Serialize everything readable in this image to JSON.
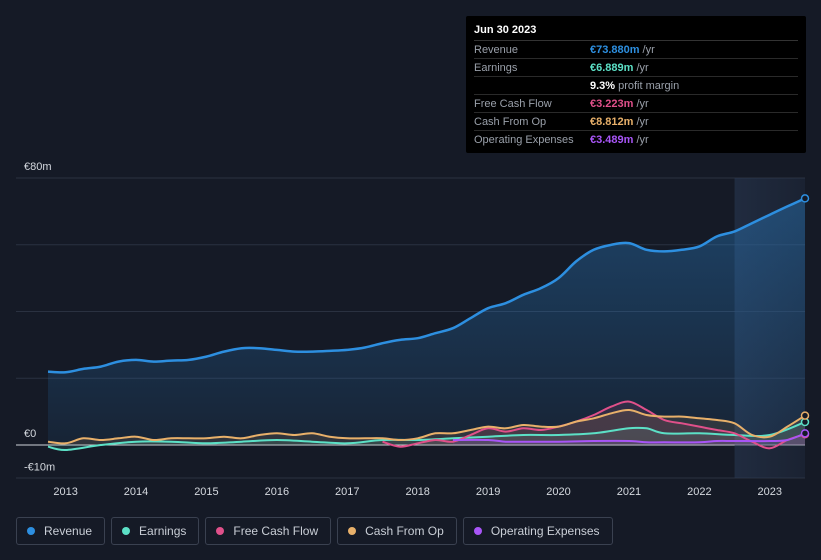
{
  "tooltip": {
    "date": "Jun 30 2023",
    "rows": [
      {
        "label": "Revenue",
        "value": "€73.880m",
        "unit": "/yr",
        "color": "#2d8fe0"
      },
      {
        "label": "Earnings",
        "value": "€6.889m",
        "unit": "/yr",
        "color": "#5ce0c6"
      },
      {
        "label": "",
        "value": "9.3%",
        "unit": "profit margin",
        "color": "#ffffff"
      },
      {
        "label": "Free Cash Flow",
        "value": "€3.223m",
        "unit": "/yr",
        "color": "#e0508a"
      },
      {
        "label": "Cash From Op",
        "value": "€8.812m",
        "unit": "/yr",
        "color": "#e8b06a"
      },
      {
        "label": "Operating Expenses",
        "value": "€3.489m",
        "unit": "/yr",
        "color": "#a855f7"
      }
    ]
  },
  "legend": [
    {
      "label": "Revenue",
      "color": "#2d8fe0"
    },
    {
      "label": "Earnings",
      "color": "#5ce0c6"
    },
    {
      "label": "Free Cash Flow",
      "color": "#e0508a"
    },
    {
      "label": "Cash From Op",
      "color": "#e8b06a"
    },
    {
      "label": "Operating Expenses",
      "color": "#a855f7"
    }
  ],
  "chart_data": {
    "type": "area",
    "title": "",
    "xlabel": "",
    "ylabel": "",
    "y_tick_labels": [
      "€80m",
      "€0",
      "-€10m"
    ],
    "ylim": [
      -10,
      80
    ],
    "xlim": [
      2012.75,
      2023.5
    ],
    "x_tick_labels": [
      "2013",
      "2014",
      "2015",
      "2016",
      "2017",
      "2018",
      "2019",
      "2020",
      "2021",
      "2022",
      "2023"
    ],
    "x_ticks": [
      2013,
      2014,
      2015,
      2016,
      2017,
      2018,
      2019,
      2020,
      2021,
      2022,
      2023
    ],
    "forecast_start": 2022.5,
    "series": [
      {
        "name": "Revenue",
        "color": "#2d8fe0",
        "x": [
          2012.75,
          2013.0,
          2013.25,
          2013.5,
          2013.75,
          2014.0,
          2014.25,
          2014.5,
          2014.75,
          2015.0,
          2015.25,
          2015.5,
          2015.75,
          2016.0,
          2016.25,
          2016.5,
          2016.75,
          2017.0,
          2017.25,
          2017.5,
          2017.75,
          2018.0,
          2018.25,
          2018.5,
          2018.75,
          2019.0,
          2019.25,
          2019.5,
          2019.75,
          2020.0,
          2020.25,
          2020.5,
          2020.75,
          2021.0,
          2021.25,
          2021.5,
          2021.75,
          2022.0,
          2022.25,
          2022.5,
          2022.75,
          2023.0,
          2023.25,
          2023.5
        ],
        "values": [
          22.0,
          21.8,
          22.8,
          23.5,
          25.0,
          25.5,
          25.0,
          25.3,
          25.5,
          26.5,
          28.0,
          29.0,
          29.0,
          28.5,
          28.0,
          28.0,
          28.2,
          28.5,
          29.2,
          30.5,
          31.5,
          32.0,
          33.5,
          35.0,
          38.0,
          41.0,
          42.5,
          45.0,
          47.0,
          50.0,
          55.0,
          58.5,
          60.0,
          60.5,
          58.5,
          58.0,
          58.5,
          59.5,
          62.5,
          64.0,
          66.5,
          69.0,
          71.5,
          73.88
        ]
      },
      {
        "name": "Earnings",
        "color": "#5ce0c6",
        "x": [
          2012.75,
          2013.0,
          2013.5,
          2014.0,
          2014.5,
          2015.0,
          2015.5,
          2016.0,
          2016.5,
          2017.0,
          2017.5,
          2018.0,
          2018.5,
          2019.0,
          2019.5,
          2020.0,
          2020.5,
          2021.0,
          2021.25,
          2021.5,
          2022.0,
          2022.5,
          2023.0,
          2023.5
        ],
        "values": [
          -0.5,
          -1.5,
          0.0,
          1.0,
          1.0,
          0.5,
          1.0,
          1.5,
          1.0,
          0.5,
          1.5,
          1.5,
          2.0,
          2.5,
          3.0,
          3.0,
          3.5,
          5.0,
          5.0,
          3.5,
          3.5,
          3.0,
          3.0,
          6.889
        ]
      },
      {
        "name": "Free Cash Flow",
        "color": "#e0508a",
        "x": [
          2017.5,
          2017.75,
          2018.0,
          2018.25,
          2018.5,
          2018.75,
          2019.0,
          2019.25,
          2019.5,
          2019.75,
          2020.0,
          2020.25,
          2020.5,
          2020.75,
          2021.0,
          2021.25,
          2021.5,
          2021.75,
          2022.0,
          2022.25,
          2022.5,
          2022.75,
          2023.0,
          2023.25,
          2023.5
        ],
        "values": [
          1.0,
          -0.5,
          0.5,
          1.5,
          1.0,
          3.0,
          5.0,
          4.0,
          5.0,
          4.5,
          5.5,
          7.0,
          9.0,
          11.5,
          13.0,
          10.5,
          7.5,
          6.5,
          5.5,
          4.5,
          3.5,
          1.0,
          -1.0,
          1.5,
          3.223
        ]
      },
      {
        "name": "Cash From Op",
        "color": "#e8b06a",
        "x": [
          2012.75,
          2013.0,
          2013.25,
          2013.5,
          2013.75,
          2014.0,
          2014.25,
          2014.5,
          2014.75,
          2015.0,
          2015.25,
          2015.5,
          2015.75,
          2016.0,
          2016.25,
          2016.5,
          2016.75,
          2017.0,
          2017.25,
          2017.5,
          2017.75,
          2018.0,
          2018.25,
          2018.5,
          2018.75,
          2019.0,
          2019.25,
          2019.5,
          2019.75,
          2020.0,
          2020.25,
          2020.5,
          2020.75,
          2021.0,
          2021.25,
          2021.5,
          2021.75,
          2022.0,
          2022.25,
          2022.5,
          2022.75,
          2023.0,
          2023.25,
          2023.5
        ],
        "values": [
          1.0,
          0.5,
          2.0,
          1.5,
          2.0,
          2.5,
          1.5,
          2.0,
          2.0,
          2.0,
          2.5,
          2.0,
          3.0,
          3.5,
          3.0,
          3.5,
          2.5,
          2.0,
          2.0,
          2.0,
          1.5,
          2.0,
          3.5,
          3.5,
          4.5,
          5.5,
          5.0,
          6.0,
          5.5,
          5.5,
          7.0,
          8.0,
          9.5,
          10.5,
          9.0,
          8.5,
          8.5,
          8.0,
          7.5,
          6.5,
          3.0,
          2.5,
          5.5,
          8.812
        ]
      },
      {
        "name": "Operating Expenses",
        "color": "#a855f7",
        "x": [
          2018.5,
          2019.0,
          2019.25,
          2019.5,
          2020.0,
          2020.5,
          2021.0,
          2021.25,
          2021.5,
          2022.0,
          2022.25,
          2022.5,
          2023.0,
          2023.25,
          2023.5
        ],
        "values": [
          1.5,
          1.5,
          1.0,
          1.0,
          1.0,
          1.2,
          1.2,
          0.8,
          0.8,
          0.8,
          1.2,
          1.2,
          1.2,
          1.5,
          3.489
        ]
      }
    ]
  }
}
